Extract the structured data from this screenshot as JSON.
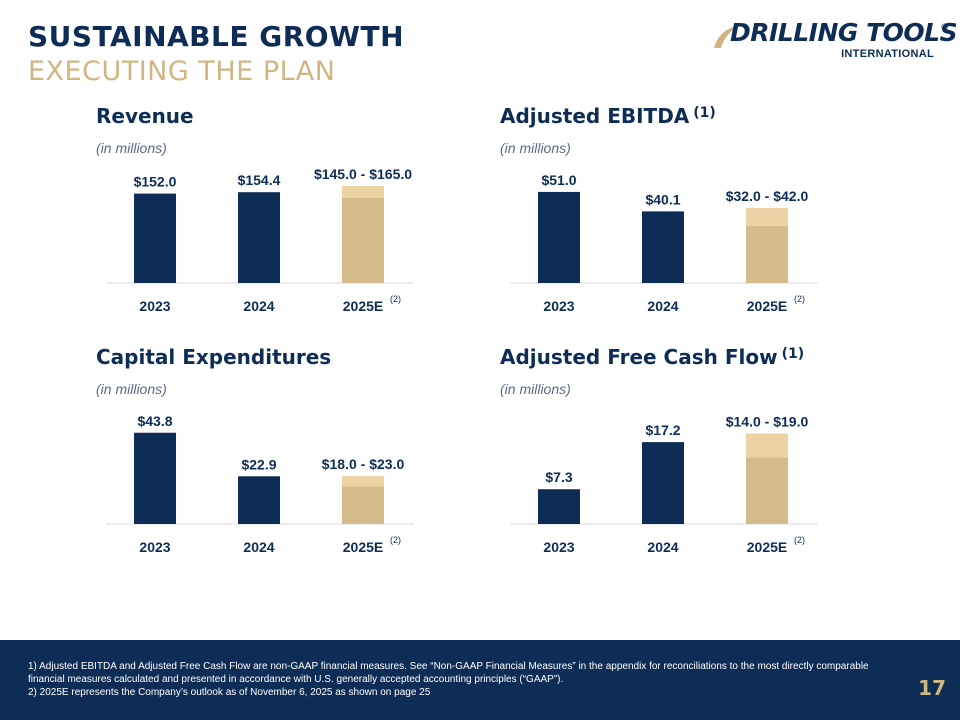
{
  "header": {
    "title": "SUSTAINABLE GROWTH",
    "subtitle": "EXECUTING THE PLAN"
  },
  "logo": {
    "name": "DRILLING TOOLS",
    "sub": "INTERNATIONAL",
    "reg": "®"
  },
  "colors": {
    "navy": "#0d2d56",
    "gold_dark": "#d4bc8a",
    "gold_light": "#ebd3a3",
    "gold_text": "#d1b681"
  },
  "chart_data": [
    {
      "type": "bar",
      "title": "Revenue",
      "title_note": "",
      "subtitle": "(in millions)",
      "categories": [
        "2023",
        "2024",
        "2025E"
      ],
      "category_notes": [
        "",
        "",
        "(2)"
      ],
      "values": [
        152.0,
        154.4,
        null
      ],
      "range": [
        null,
        null,
        [
          145.0,
          165.0
        ]
      ],
      "labels": [
        "$152.0",
        "$154.4",
        "$145.0 - $165.0"
      ],
      "ylim": [
        0,
        170
      ]
    },
    {
      "type": "bar",
      "title": "Adjusted EBITDA",
      "title_note": "(1)",
      "subtitle": "(in millions)",
      "categories": [
        "2023",
        "2024",
        "2025E"
      ],
      "category_notes": [
        "",
        "",
        "(2)"
      ],
      "values": [
        51.0,
        40.1,
        null
      ],
      "range": [
        null,
        null,
        [
          32.0,
          42.0
        ]
      ],
      "labels": [
        "$51.0",
        "$40.1",
        "$32.0 - $42.0"
      ],
      "ylim": [
        0,
        56
      ]
    },
    {
      "type": "bar",
      "title": "Capital Expenditures",
      "title_note": "",
      "subtitle": "(in millions)",
      "categories": [
        "2023",
        "2024",
        "2025E"
      ],
      "category_notes": [
        "",
        "",
        "(2)"
      ],
      "values": [
        43.8,
        22.9,
        null
      ],
      "range": [
        null,
        null,
        [
          18.0,
          23.0
        ]
      ],
      "labels": [
        "$43.8",
        "$22.9",
        "$18.0 - $23.0"
      ],
      "ylim": [
        0,
        48
      ]
    },
    {
      "type": "bar",
      "title": "Adjusted Free Cash Flow",
      "title_note": "(1)",
      "subtitle": "(in millions)",
      "categories": [
        "2023",
        "2024",
        "2025E"
      ],
      "category_notes": [
        "",
        "",
        "(2)"
      ],
      "values": [
        7.3,
        17.2,
        null
      ],
      "range": [
        null,
        null,
        [
          14.0,
          19.0
        ]
      ],
      "labels": [
        "$7.3",
        "$17.2",
        "$14.0 - $19.0"
      ],
      "ylim": [
        0,
        21
      ]
    }
  ],
  "footer": {
    "note1": "1) Adjusted EBITDA and Adjusted Free Cash Flow are non-GAAP financial measures. See “Non-GAAP Financial Measures” in the appendix for reconciliations to the most directly comparable financial measures calculated and presented in accordance with U.S. generally accepted accounting principles (“GAAP”).",
    "note2": "2) 2025E represents the Company’s outlook as of November 6, 2025 as shown on page 25",
    "page": "17"
  }
}
